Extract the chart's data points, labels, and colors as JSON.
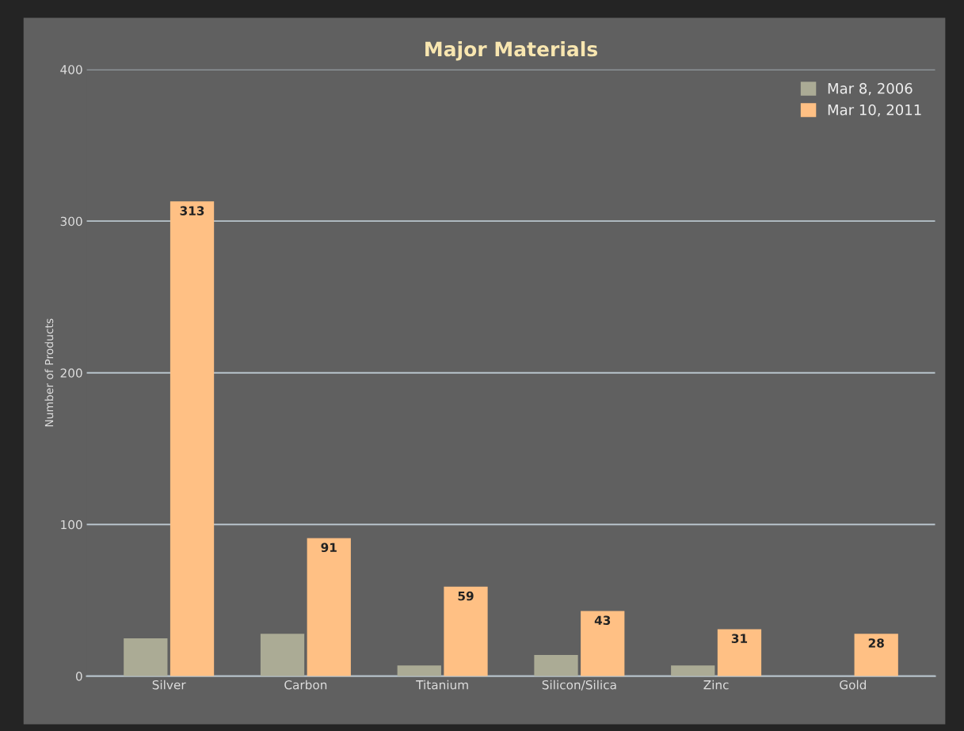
{
  "chart_data": {
    "type": "bar",
    "title": "Major Materials",
    "ylabel": "Number of Products",
    "categories": [
      "Silver",
      "Carbon",
      "Titanium",
      "Silicon/Silica",
      "Zinc",
      "Gold"
    ],
    "series": [
      {
        "name": "Mar 8, 2006",
        "color": "#abab95",
        "values": [
          25,
          28,
          7,
          14,
          7,
          0
        ]
      },
      {
        "name": "Mar 10, 2011",
        "color": "#ffc084",
        "values": [
          313,
          91,
          59,
          43,
          31,
          28
        ],
        "value_labels": [
          "313",
          "91",
          "59",
          "43",
          "31",
          "28"
        ]
      }
    ],
    "ylim": [
      0,
      400
    ],
    "yticks": [
      0,
      100,
      200,
      300,
      400
    ],
    "grid": "y",
    "legend": "top right"
  }
}
